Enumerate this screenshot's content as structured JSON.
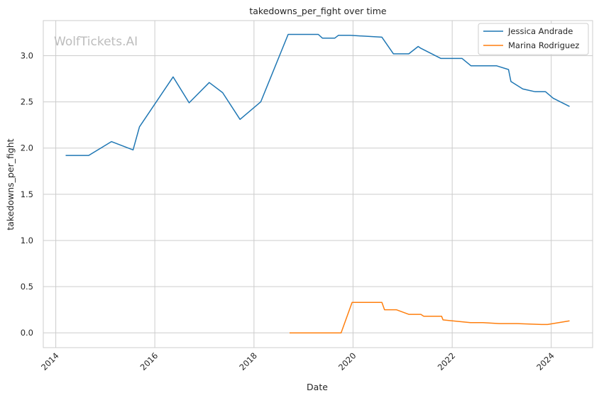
{
  "chart_data": {
    "type": "line",
    "title": "takedowns_per_fight over time",
    "xlabel": "Date",
    "ylabel": "takedowns_per_fight",
    "watermark": "WolfTickets.AI",
    "xlim": [
      "2013-10-01",
      "2024-11-01"
    ],
    "ylim": [
      -0.16,
      3.38
    ],
    "x_ticks": [
      "2014",
      "2016",
      "2018",
      "2020",
      "2022",
      "2024"
    ],
    "y_ticks": [
      "0.0",
      "0.5",
      "1.0",
      "1.5",
      "2.0",
      "2.5",
      "3.0"
    ],
    "grid": true,
    "legend_position": "top-right",
    "colors": {
      "grid": "#cccccc",
      "axis": "#cccccc"
    },
    "series": [
      {
        "name": "Jessica Andrade",
        "color": "#1f77b4",
        "points": [
          [
            "2014-03-15",
            1.92
          ],
          [
            "2014-09-01",
            1.92
          ],
          [
            "2015-02-15",
            2.07
          ],
          [
            "2015-07-25",
            1.98
          ],
          [
            "2015-09-10",
            2.23
          ],
          [
            "2016-05-15",
            2.77
          ],
          [
            "2016-09-10",
            2.49
          ],
          [
            "2017-02-05",
            2.71
          ],
          [
            "2017-05-15",
            2.6
          ],
          [
            "2017-09-20",
            2.31
          ],
          [
            "2018-02-20",
            2.5
          ],
          [
            "2018-09-10",
            3.23
          ],
          [
            "2019-04-20",
            3.23
          ],
          [
            "2019-05-20",
            3.19
          ],
          [
            "2019-08-20",
            3.19
          ],
          [
            "2019-09-15",
            3.22
          ],
          [
            "2019-12-10",
            3.22
          ],
          [
            "2020-08-01",
            3.2
          ],
          [
            "2020-10-25",
            3.02
          ],
          [
            "2021-02-15",
            3.02
          ],
          [
            "2021-04-25",
            3.1
          ],
          [
            "2021-05-15",
            3.08
          ],
          [
            "2021-10-10",
            2.97
          ],
          [
            "2022-03-15",
            2.97
          ],
          [
            "2022-05-20",
            2.89
          ],
          [
            "2022-11-25",
            2.89
          ],
          [
            "2023-02-20",
            2.85
          ],
          [
            "2023-03-10",
            2.72
          ],
          [
            "2023-06-05",
            2.64
          ],
          [
            "2023-09-05",
            2.61
          ],
          [
            "2023-11-20",
            2.61
          ],
          [
            "2024-01-15",
            2.54
          ],
          [
            "2024-05-15",
            2.45
          ]
        ]
      },
      {
        "name": "Marina Rodriguez",
        "color": "#ff7f0e",
        "points": [
          [
            "2018-09-20",
            0.0
          ],
          [
            "2019-10-05",
            0.0
          ],
          [
            "2019-12-25",
            0.33
          ],
          [
            "2020-08-01",
            0.33
          ],
          [
            "2020-08-20",
            0.25
          ],
          [
            "2020-11-15",
            0.25
          ],
          [
            "2021-02-15",
            0.2
          ],
          [
            "2021-05-15",
            0.2
          ],
          [
            "2021-06-05",
            0.18
          ],
          [
            "2021-10-15",
            0.18
          ],
          [
            "2021-10-25",
            0.14
          ],
          [
            "2022-05-15",
            0.11
          ],
          [
            "2022-08-15",
            0.11
          ],
          [
            "2022-12-15",
            0.1
          ],
          [
            "2023-04-25",
            0.1
          ],
          [
            "2023-10-25",
            0.09
          ],
          [
            "2023-12-05",
            0.09
          ],
          [
            "2024-05-15",
            0.13
          ]
        ]
      }
    ]
  }
}
